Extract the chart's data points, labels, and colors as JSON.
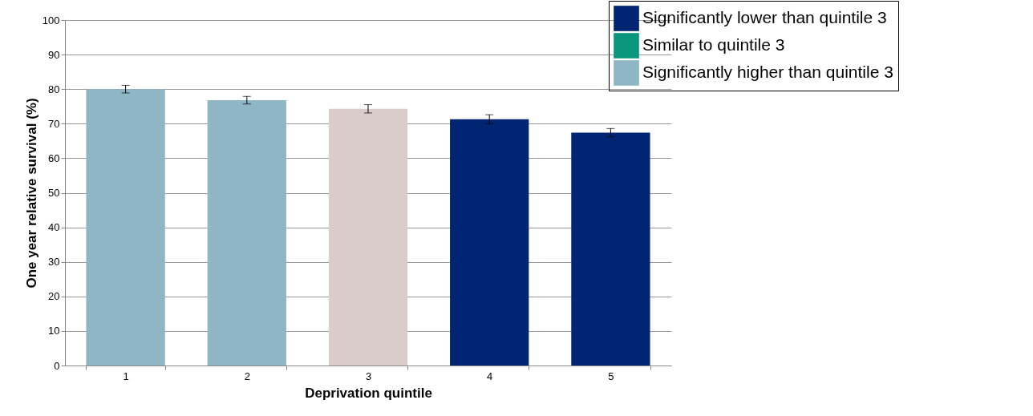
{
  "chart_data": {
    "type": "bar",
    "xlabel": "Deprivation quintile",
    "ylabel": "One year relative survival (%)",
    "categories": [
      "1",
      "2",
      "3",
      "4",
      "5"
    ],
    "series": [
      {
        "name": "Significantly lower than quintile 3",
        "color": "#002673",
        "values": [
          null,
          null,
          null,
          71.3,
          67.4
        ],
        "errors": [
          null,
          null,
          null,
          1.3,
          1.2
        ]
      },
      {
        "name": "Similar to quintile 3",
        "color": "#08967e",
        "values": [
          null,
          null,
          null,
          null,
          null
        ]
      },
      {
        "name": "Significantly higher than quintile 3",
        "color": "#8eb6c4",
        "values": [
          80.0,
          76.8,
          null,
          null,
          null
        ],
        "errors": [
          1.1,
          1.1,
          null,
          null,
          null
        ]
      },
      {
        "color": "#dbcccc",
        "values": [
          null,
          null,
          74.3,
          null,
          null
        ],
        "errors": [
          null,
          null,
          1.2,
          null,
          null
        ]
      }
    ],
    "ylim": [
      0,
      100
    ],
    "yticks": [
      0,
      10,
      20,
      30,
      40,
      50,
      60,
      70,
      80,
      90,
      100
    ],
    "grid": "y",
    "legend": "top right"
  }
}
